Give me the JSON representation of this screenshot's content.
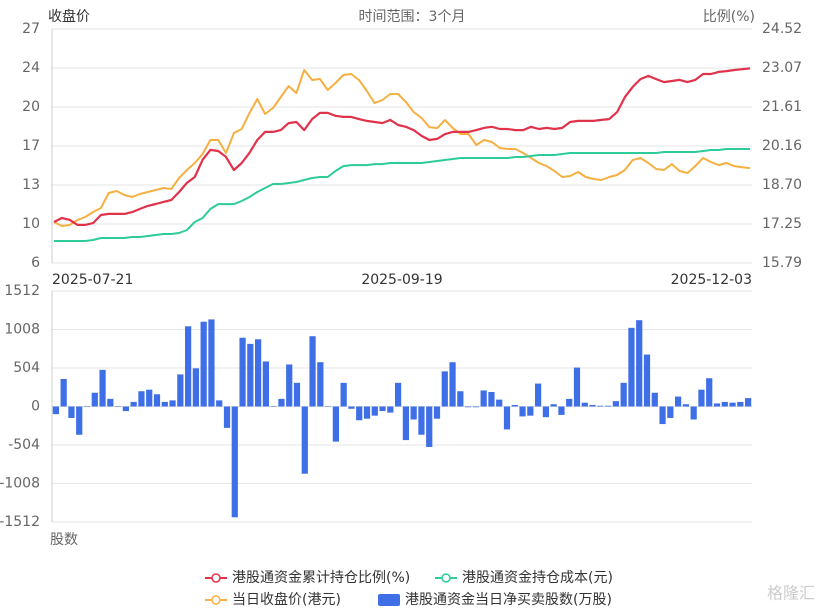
{
  "chart_data": [
    {
      "type": "line",
      "title": "时间范围：3个月",
      "y_label": "收盘价",
      "y2_label": "比例(%)",
      "x_labels": [
        "2025-07-21",
        "2025-09-19",
        "2025-12-03"
      ],
      "ylim": [
        6,
        27
      ],
      "yticks": [
        6,
        {
          "value": 9.5,
          "label": "10"
        },
        13,
        {
          "value": 16.5,
          "label": "17"
        },
        20,
        {
          "value": 23.5,
          "label": "24"
        },
        27
      ],
      "y2lim": [
        15.79,
        24.52
      ],
      "y2ticks": [
        15.79,
        17.25,
        {
          "value": 18.7,
          "label": "18.70"
        },
        20.16,
        21.61,
        23.07,
        24.52
      ],
      "grid": true,
      "series": [
        {
          "name": "港股通资金累计持仓比例(%)",
          "color": "#e0334b",
          "axis": "y2",
          "values": [
            17.32,
            17.47,
            17.4,
            17.21,
            17.21,
            17.28,
            17.58,
            17.62,
            17.62,
            17.62,
            17.69,
            17.81,
            17.92,
            17.99,
            18.07,
            18.14,
            18.44,
            18.78,
            19.0,
            19.64,
            20.01,
            19.97,
            19.75,
            19.26,
            19.52,
            19.9,
            20.38,
            20.68,
            20.68,
            20.75,
            21.01,
            21.05,
            20.75,
            21.16,
            21.39,
            21.39,
            21.28,
            21.24,
            21.24,
            21.16,
            21.09,
            21.05,
            21.01,
            21.13,
            20.94,
            20.87,
            20.75,
            20.53,
            20.38,
            20.42,
            20.6,
            20.68,
            20.68,
            20.68,
            20.75,
            20.83,
            20.87,
            20.79,
            20.79,
            20.75,
            20.75,
            20.87,
            20.79,
            20.83,
            20.79,
            20.83,
            21.05,
            21.09,
            21.09,
            21.09,
            21.13,
            21.16,
            21.42,
            21.98,
            22.36,
            22.65,
            22.77,
            22.65,
            22.54,
            22.58,
            22.62,
            22.54,
            22.62,
            22.84,
            22.84,
            22.92,
            22.95,
            22.99,
            23.02,
            23.05
          ]
        },
        {
          "name": "港股通资金持仓成本(元)",
          "color": "#2dcc9a",
          "axis": "y",
          "values": [
            7.97,
            7.97,
            7.97,
            7.97,
            7.97,
            8.06,
            8.24,
            8.24,
            8.24,
            8.24,
            8.33,
            8.33,
            8.42,
            8.51,
            8.6,
            8.6,
            8.69,
            8.96,
            9.68,
            10.04,
            10.85,
            11.29,
            11.29,
            11.29,
            11.56,
            11.92,
            12.37,
            12.73,
            13.09,
            13.09,
            13.18,
            13.27,
            13.45,
            13.63,
            13.72,
            13.72,
            14.26,
            14.7,
            14.79,
            14.79,
            14.79,
            14.88,
            14.88,
            14.97,
            14.97,
            14.97,
            14.97,
            14.97,
            15.06,
            15.15,
            15.24,
            15.33,
            15.42,
            15.42,
            15.42,
            15.42,
            15.42,
            15.42,
            15.42,
            15.51,
            15.51,
            15.6,
            15.69,
            15.69,
            15.69,
            15.78,
            15.87,
            15.87,
            15.87,
            15.87,
            15.87,
            15.87,
            15.87,
            15.87,
            15.87,
            15.87,
            15.87,
            15.87,
            15.96,
            15.96,
            15.96,
            15.96,
            15.96,
            16.05,
            16.14,
            16.14,
            16.23,
            16.23,
            16.23,
            16.23
          ]
        },
        {
          "name": "当日收盘价(港元)",
          "color": "#f5b041",
          "axis": "y",
          "values": [
            9.68,
            9.32,
            9.41,
            9.86,
            10.13,
            10.58,
            10.94,
            12.28,
            12.46,
            12.1,
            11.92,
            12.19,
            12.37,
            12.55,
            12.73,
            12.64,
            13.63,
            14.35,
            14.97,
            15.78,
            17.04,
            17.04,
            15.87,
            17.67,
            18.03,
            19.46,
            20.72,
            19.37,
            19.91,
            20.9,
            21.88,
            21.26,
            23.32,
            22.42,
            22.51,
            21.53,
            22.15,
            22.87,
            22.96,
            22.42,
            21.44,
            20.36,
            20.63,
            21.17,
            21.17,
            20.45,
            19.55,
            19.01,
            18.2,
            18.11,
            18.83,
            18.11,
            17.58,
            17.58,
            16.59,
            17.04,
            16.86,
            16.32,
            16.23,
            16.23,
            15.87,
            15.42,
            14.97,
            14.7,
            14.26,
            13.72,
            13.81,
            14.17,
            13.72,
            13.54,
            13.45,
            13.72,
            13.9,
            14.35,
            15.24,
            15.42,
            14.97,
            14.44,
            14.35,
            14.88,
            14.26,
            14.08,
            14.7,
            15.42,
            15.06,
            14.79,
            14.97,
            14.7,
            14.6,
            14.52
          ]
        }
      ]
    },
    {
      "type": "bar",
      "y_label": "股数",
      "ylim": [
        -1512,
        1512
      ],
      "yticks": [
        -1512,
        -1008,
        -504,
        0,
        504,
        1008,
        1512
      ],
      "grid": true,
      "series": [
        {
          "name": "港股通资金当日净买卖股数(万股)",
          "color": "#3f6fe6",
          "values": [
            -100,
            360,
            -150,
            -370,
            0,
            180,
            480,
            100,
            0,
            -60,
            60,
            200,
            220,
            160,
            60,
            80,
            420,
            1050,
            500,
            1110,
            1140,
            80,
            -280,
            -1450,
            900,
            820,
            880,
            590,
            0,
            100,
            550,
            310,
            -880,
            920,
            580,
            0,
            -460,
            310,
            -30,
            -180,
            -160,
            -120,
            -60,
            -80,
            310,
            -440,
            -170,
            -370,
            -530,
            -160,
            460,
            580,
            200,
            -10,
            -10,
            210,
            190,
            90,
            -300,
            20,
            -130,
            -120,
            300,
            -140,
            30,
            -110,
            100,
            510,
            50,
            20,
            10,
            10,
            70,
            310,
            1030,
            1130,
            680,
            180,
            -230,
            -150,
            130,
            30,
            -170,
            220,
            370,
            40,
            60,
            50,
            60,
            110
          ]
        }
      ]
    }
  ],
  "watermark": "格隆汇"
}
